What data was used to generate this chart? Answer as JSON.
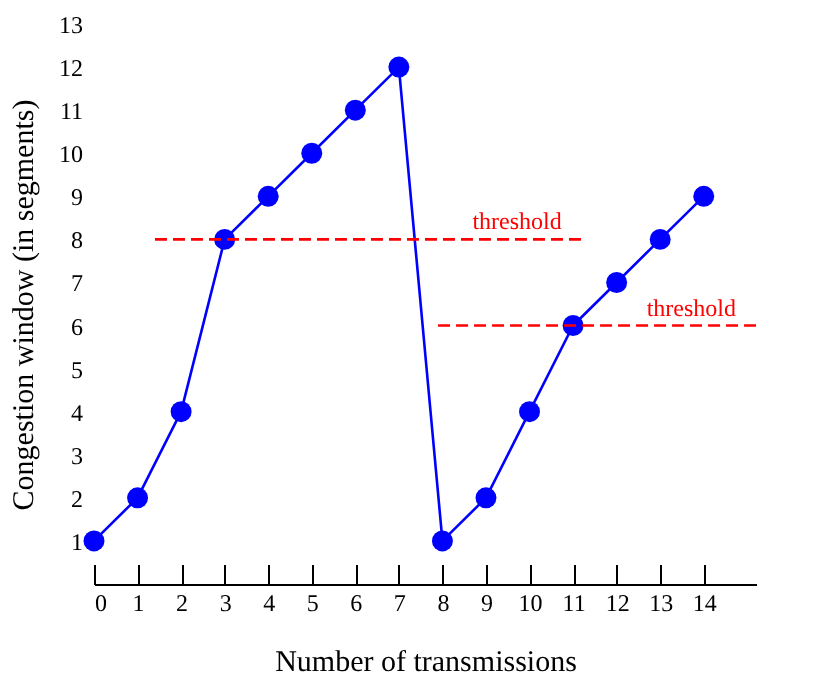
{
  "chart_data": {
    "type": "line",
    "xlabel": "Number of transmissions",
    "ylabel": "Congestion window (in segments)",
    "xlim": [
      0,
      15.2
    ],
    "xticks": [
      0,
      1,
      2,
      3,
      4,
      5,
      6,
      7,
      8,
      9,
      10,
      11,
      12,
      13,
      14
    ],
    "ylim": [
      0,
      13
    ],
    "yticks": [
      1,
      2,
      3,
      4,
      5,
      6,
      7,
      8,
      9,
      10,
      11,
      12,
      13
    ],
    "series": [
      {
        "color": "#0000ff",
        "line_style": "solid",
        "x": [
          0,
          1,
          2,
          3,
          4,
          5,
          6,
          7,
          8,
          9,
          10,
          11,
          12,
          13,
          14
        ],
        "values": [
          1,
          2,
          4,
          8,
          9,
          10,
          11,
          12,
          1,
          2,
          4,
          6,
          7,
          8,
          9
        ]
      },
      {
        "name": "threshold",
        "color": "#ff0000",
        "marker": "none",
        "line_style": "dashed",
        "x": [
          1.4,
          11.2
        ],
        "values": [
          8,
          8
        ]
      },
      {
        "name": "threshold",
        "color": "#ff0000",
        "marker": "none",
        "line_style": "dashed",
        "x": [
          7.9,
          15.2
        ],
        "values": [
          6,
          6
        ]
      }
    ],
    "marker": "circle"
  }
}
